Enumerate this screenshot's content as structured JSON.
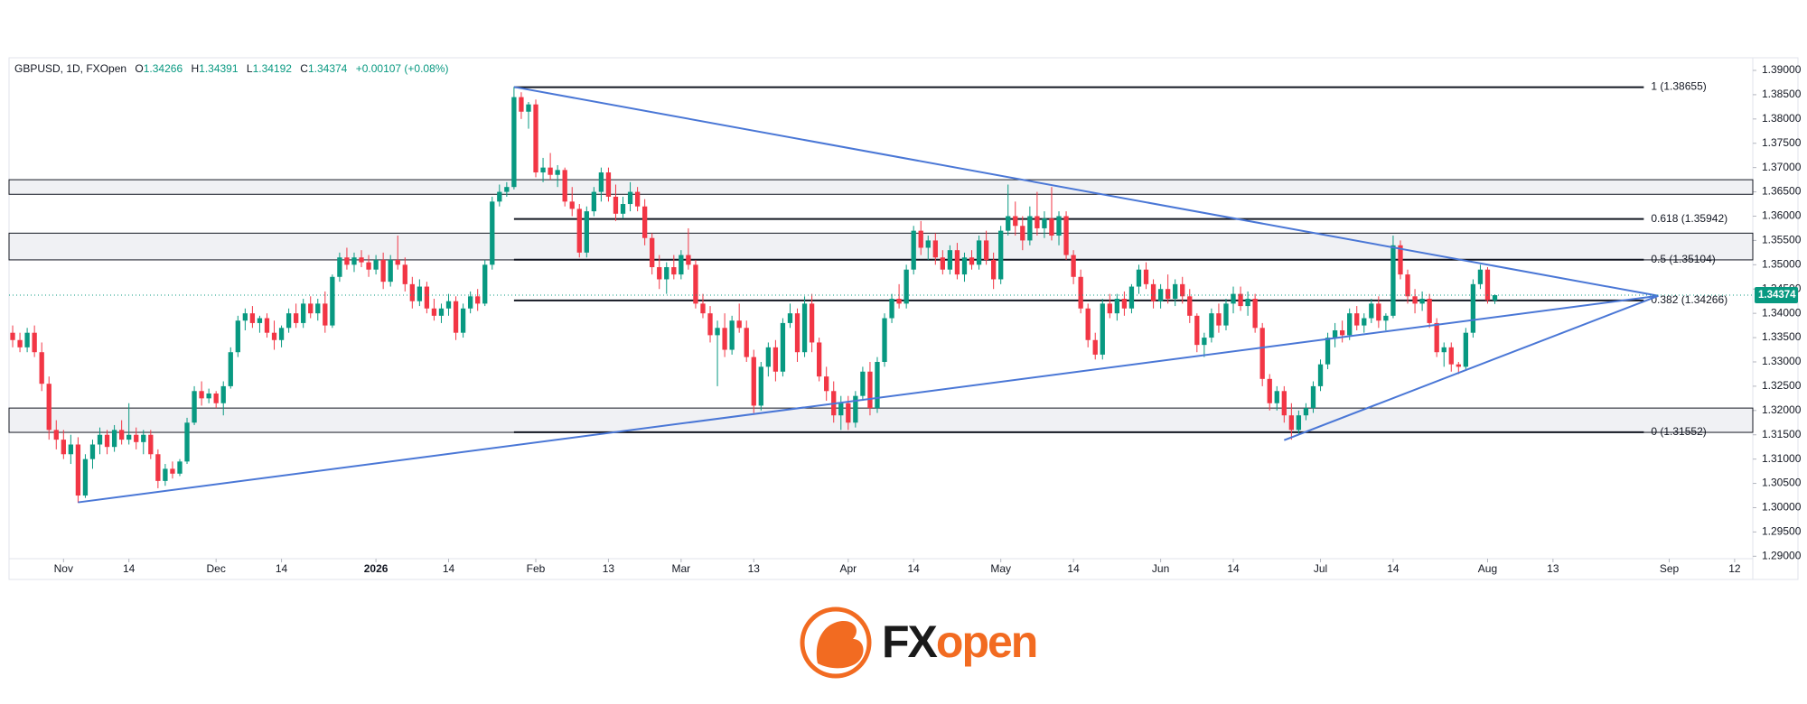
{
  "chart_data": {
    "type": "candlestick",
    "title": "GBPUSD, 1D, FXOpen",
    "change_label": "+0.00107 (+0.08%)",
    "ohlc_letters": [
      "O",
      "H",
      "L",
      "C"
    ],
    "up_color": "#089981",
    "down_color": "#f23645",
    "trend_color": "#4a77d6",
    "xlim": [
      -0.5,
      239.5
    ],
    "ylim": [
      1.2895,
      1.3926
    ],
    "xticks": [
      {
        "value": 7,
        "label": "Nov"
      },
      {
        "value": 16,
        "label": "14"
      },
      {
        "value": 28,
        "label": "Dec"
      },
      {
        "value": 37,
        "label": "14"
      },
      {
        "value": 50,
        "label": "2026"
      },
      {
        "value": 60,
        "label": "14"
      },
      {
        "value": 72,
        "label": "Feb"
      },
      {
        "value": 82,
        "label": "13"
      },
      {
        "value": 92,
        "label": "Mar"
      },
      {
        "value": 102,
        "label": "13"
      },
      {
        "value": 115,
        "label": "Apr"
      },
      {
        "value": 124,
        "label": "14"
      },
      {
        "value": 136,
        "label": "May"
      },
      {
        "value": 146,
        "label": "14"
      },
      {
        "value": 158,
        "label": "Jun"
      },
      {
        "value": 168,
        "label": "14"
      },
      {
        "value": 180,
        "label": "Jul"
      },
      {
        "value": 190,
        "label": "14"
      },
      {
        "value": 203,
        "label": "Aug"
      },
      {
        "value": 212,
        "label": "13"
      },
      {
        "value": 228,
        "label": "Sep"
      },
      {
        "value": 237,
        "label": "12"
      }
    ],
    "yticks": [
      {
        "value": 1.29,
        "label": "1.29000"
      },
      {
        "value": 1.295,
        "label": "1.29500"
      },
      {
        "value": 1.3,
        "label": "1.30000"
      },
      {
        "value": 1.305,
        "label": "1.30500"
      },
      {
        "value": 1.31,
        "label": "1.31000"
      },
      {
        "value": 1.315,
        "label": "1.31500"
      },
      {
        "value": 1.32,
        "label": "1.32000"
      },
      {
        "value": 1.325,
        "label": "1.32500"
      },
      {
        "value": 1.33,
        "label": "1.33000"
      },
      {
        "value": 1.335,
        "label": "1.33500"
      },
      {
        "value": 1.34,
        "label": "1.34000"
      },
      {
        "value": 1.345,
        "label": "1.34500"
      },
      {
        "value": 1.35,
        "label": "1.35000"
      },
      {
        "value": 1.355,
        "label": "1.35500"
      },
      {
        "value": 1.36,
        "label": "1.36000"
      },
      {
        "value": 1.365,
        "label": "1.36500"
      },
      {
        "value": 1.37,
        "label": "1.37000"
      },
      {
        "value": 1.375,
        "label": "1.37500"
      },
      {
        "value": 1.38,
        "label": "1.38000"
      },
      {
        "value": 1.385,
        "label": "1.38500"
      },
      {
        "value": 1.39,
        "label": "1.39000"
      }
    ],
    "zones": [
      [
        1.3645,
        1.3675
      ],
      [
        1.351,
        1.3565
      ],
      [
        1.3155,
        1.3205
      ]
    ],
    "fib_levels": [
      {
        "value": 1.38655,
        "label": "1 (1.38655)"
      },
      {
        "value": 1.35942,
        "label": "0.618 (1.35942)"
      },
      {
        "value": 1.35104,
        "label": "0.5 (1.35104)"
      },
      {
        "value": 1.34266,
        "label": "0.382 (1.34266)"
      },
      {
        "value": 1.31552,
        "label": "0 (1.31552)"
      }
    ],
    "trendlines": [
      [
        [
          9,
          1.3011
        ],
        [
          226.5,
          1.3436
        ]
      ],
      [
        [
          69,
          1.3866
        ],
        [
          226.5,
          1.3436
        ]
      ],
      [
        [
          175,
          1.3139
        ],
        [
          226.5,
          1.3436
        ]
      ]
    ],
    "candles": [
      [
        1.336,
        1.3375,
        1.333,
        1.3345
      ],
      [
        1.3345,
        1.336,
        1.332,
        1.333
      ],
      [
        1.333,
        1.337,
        1.332,
        1.336
      ],
      [
        1.336,
        1.3375,
        1.331,
        1.332
      ],
      [
        1.332,
        1.334,
        1.324,
        1.3255
      ],
      [
        1.3255,
        1.327,
        1.314,
        1.316
      ],
      [
        1.316,
        1.318,
        1.312,
        1.314
      ],
      [
        1.314,
        1.316,
        1.31,
        1.311
      ],
      [
        1.311,
        1.315,
        1.309,
        1.313
      ],
      [
        1.313,
        1.3145,
        1.301,
        1.3025
      ],
      [
        1.3025,
        1.311,
        1.302,
        1.31
      ],
      [
        1.31,
        1.314,
        1.308,
        1.313
      ],
      [
        1.313,
        1.3165,
        1.311,
        1.315
      ],
      [
        1.315,
        1.316,
        1.311,
        1.3125
      ],
      [
        1.3125,
        1.317,
        1.3115,
        1.316
      ],
      [
        1.316,
        1.318,
        1.313,
        1.314
      ],
      [
        1.314,
        1.3215,
        1.313,
        1.315
      ],
      [
        1.315,
        1.3165,
        1.312,
        1.3135
      ],
      [
        1.3135,
        1.316,
        1.311,
        1.315
      ],
      [
        1.315,
        1.316,
        1.31,
        1.311
      ],
      [
        1.311,
        1.312,
        1.304,
        1.3055
      ],
      [
        1.3055,
        1.309,
        1.3045,
        1.308
      ],
      [
        1.308,
        1.3095,
        1.306,
        1.307
      ],
      [
        1.307,
        1.31,
        1.3065,
        1.3095
      ],
      [
        1.3095,
        1.3185,
        1.309,
        1.3175
      ],
      [
        1.3175,
        1.325,
        1.317,
        1.324
      ],
      [
        1.324,
        1.326,
        1.321,
        1.3225
      ],
      [
        1.3225,
        1.3245,
        1.3215,
        1.3235
      ],
      [
        1.3235,
        1.324,
        1.3205,
        1.3215
      ],
      [
        1.3215,
        1.326,
        1.319,
        1.325
      ],
      [
        1.325,
        1.333,
        1.3245,
        1.332
      ],
      [
        1.332,
        1.3395,
        1.331,
        1.3385
      ],
      [
        1.3385,
        1.341,
        1.3365,
        1.34
      ],
      [
        1.34,
        1.3415,
        1.337,
        1.338
      ],
      [
        1.338,
        1.3395,
        1.336,
        1.339
      ],
      [
        1.339,
        1.34,
        1.335,
        1.336
      ],
      [
        1.336,
        1.3385,
        1.3325,
        1.3345
      ],
      [
        1.3345,
        1.3375,
        1.333,
        1.337
      ],
      [
        1.337,
        1.341,
        1.336,
        1.34
      ],
      [
        1.34,
        1.342,
        1.337,
        1.338
      ],
      [
        1.338,
        1.343,
        1.337,
        1.342
      ],
      [
        1.342,
        1.3435,
        1.339,
        1.34
      ],
      [
        1.34,
        1.343,
        1.3385,
        1.342
      ],
      [
        1.342,
        1.3445,
        1.336,
        1.3375
      ],
      [
        1.3375,
        1.348,
        1.337,
        1.3475
      ],
      [
        1.3475,
        1.3525,
        1.3465,
        1.3515
      ],
      [
        1.3515,
        1.3535,
        1.349,
        1.35
      ],
      [
        1.35,
        1.3525,
        1.3485,
        1.3515
      ],
      [
        1.3515,
        1.353,
        1.3495,
        1.3505
      ],
      [
        1.3505,
        1.352,
        1.3475,
        1.349
      ],
      [
        1.349,
        1.352,
        1.348,
        1.351
      ],
      [
        1.351,
        1.3525,
        1.345,
        1.3465
      ],
      [
        1.3465,
        1.352,
        1.3455,
        1.351
      ],
      [
        1.351,
        1.356,
        1.349,
        1.35
      ],
      [
        1.35,
        1.3515,
        1.3445,
        1.346
      ],
      [
        1.346,
        1.3475,
        1.341,
        1.3425
      ],
      [
        1.3425,
        1.347,
        1.3415,
        1.3455
      ],
      [
        1.3455,
        1.3465,
        1.34,
        1.341
      ],
      [
        1.341,
        1.343,
        1.3385,
        1.3395
      ],
      [
        1.3395,
        1.342,
        1.338,
        1.341
      ],
      [
        1.341,
        1.344,
        1.3395,
        1.3425
      ],
      [
        1.3425,
        1.3435,
        1.3345,
        1.336
      ],
      [
        1.336,
        1.342,
        1.335,
        1.341
      ],
      [
        1.341,
        1.3445,
        1.34,
        1.3435
      ],
      [
        1.3435,
        1.345,
        1.3405,
        1.342
      ],
      [
        1.342,
        1.351,
        1.3415,
        1.35
      ],
      [
        1.35,
        1.364,
        1.349,
        1.363
      ],
      [
        1.363,
        1.3665,
        1.362,
        1.365
      ],
      [
        1.365,
        1.367,
        1.364,
        1.366
      ],
      [
        1.366,
        1.3866,
        1.3655,
        1.3845
      ],
      [
        1.3845,
        1.3855,
        1.38,
        1.3815
      ],
      [
        1.3815,
        1.3835,
        1.378,
        1.383
      ],
      [
        1.383,
        1.384,
        1.368,
        1.369
      ],
      [
        1.369,
        1.372,
        1.367,
        1.37
      ],
      [
        1.37,
        1.373,
        1.3675,
        1.3685
      ],
      [
        1.3685,
        1.3705,
        1.366,
        1.3695
      ],
      [
        1.3695,
        1.37,
        1.362,
        1.363
      ],
      [
        1.363,
        1.366,
        1.36,
        1.3615
      ],
      [
        1.3615,
        1.3625,
        1.3515,
        1.3525
      ],
      [
        1.3525,
        1.362,
        1.3515,
        1.361
      ],
      [
        1.361,
        1.366,
        1.36,
        1.365
      ],
      [
        1.365,
        1.37,
        1.363,
        1.369
      ],
      [
        1.369,
        1.37,
        1.363,
        1.364
      ],
      [
        1.364,
        1.3665,
        1.359,
        1.3605
      ],
      [
        1.3605,
        1.364,
        1.3595,
        1.3625
      ],
      [
        1.3625,
        1.367,
        1.361,
        1.365
      ],
      [
        1.365,
        1.366,
        1.361,
        1.362
      ],
      [
        1.362,
        1.3635,
        1.354,
        1.3555
      ],
      [
        1.3555,
        1.3565,
        1.348,
        1.3495
      ],
      [
        1.3495,
        1.352,
        1.345,
        1.347
      ],
      [
        1.347,
        1.3505,
        1.344,
        1.3495
      ],
      [
        1.3495,
        1.352,
        1.347,
        1.348
      ],
      [
        1.348,
        1.353,
        1.347,
        1.352
      ],
      [
        1.352,
        1.3575,
        1.349,
        1.35
      ],
      [
        1.35,
        1.351,
        1.341,
        1.342
      ],
      [
        1.342,
        1.344,
        1.339,
        1.34
      ],
      [
        1.34,
        1.3415,
        1.334,
        1.3355
      ],
      [
        1.3355,
        1.3385,
        1.325,
        1.337
      ],
      [
        1.337,
        1.34,
        1.331,
        1.3325
      ],
      [
        1.3325,
        1.3395,
        1.3315,
        1.3385
      ],
      [
        1.3385,
        1.342,
        1.336,
        1.337
      ],
      [
        1.337,
        1.3385,
        1.33,
        1.331
      ],
      [
        1.331,
        1.3325,
        1.3195,
        1.321
      ],
      [
        1.321,
        1.33,
        1.32,
        1.329
      ],
      [
        1.329,
        1.334,
        1.327,
        1.333
      ],
      [
        1.333,
        1.3345,
        1.326,
        1.328
      ],
      [
        1.328,
        1.339,
        1.327,
        1.338
      ],
      [
        1.338,
        1.342,
        1.337,
        1.34
      ],
      [
        1.34,
        1.341,
        1.33,
        1.332
      ],
      [
        1.332,
        1.3435,
        1.331,
        1.342
      ],
      [
        1.342,
        1.344,
        1.332,
        1.334
      ],
      [
        1.334,
        1.335,
        1.326,
        1.327
      ],
      [
        1.327,
        1.329,
        1.322,
        1.324
      ],
      [
        1.324,
        1.326,
        1.3175,
        1.319
      ],
      [
        1.319,
        1.323,
        1.316,
        1.3215
      ],
      [
        1.3215,
        1.323,
        1.316,
        1.3175
      ],
      [
        1.3175,
        1.324,
        1.3165,
        1.323
      ],
      [
        1.323,
        1.329,
        1.322,
        1.328
      ],
      [
        1.328,
        1.33,
        1.319,
        1.3205
      ],
      [
        1.3205,
        1.331,
        1.3195,
        1.33
      ],
      [
        1.33,
        1.34,
        1.329,
        1.339
      ],
      [
        1.339,
        1.344,
        1.338,
        1.343
      ],
      [
        1.343,
        1.346,
        1.341,
        1.342
      ],
      [
        1.342,
        1.35,
        1.341,
        1.349
      ],
      [
        1.349,
        1.358,
        1.348,
        1.357
      ],
      [
        1.357,
        1.359,
        1.352,
        1.3535
      ],
      [
        1.3535,
        1.356,
        1.351,
        1.355
      ],
      [
        1.355,
        1.3565,
        1.35,
        1.3515
      ],
      [
        1.3515,
        1.353,
        1.348,
        1.349
      ],
      [
        1.349,
        1.354,
        1.348,
        1.353
      ],
      [
        1.353,
        1.3545,
        1.347,
        1.348
      ],
      [
        1.348,
        1.3525,
        1.3465,
        1.3515
      ],
      [
        1.3515,
        1.353,
        1.349,
        1.35
      ],
      [
        1.35,
        1.356,
        1.349,
        1.355
      ],
      [
        1.355,
        1.357,
        1.35,
        1.351
      ],
      [
        1.351,
        1.3525,
        1.345,
        1.347
      ],
      [
        1.347,
        1.358,
        1.346,
        1.357
      ],
      [
        1.357,
        1.3665,
        1.356,
        1.36
      ],
      [
        1.36,
        1.363,
        1.356,
        1.358
      ],
      [
        1.358,
        1.36,
        1.353,
        1.355
      ],
      [
        1.355,
        1.362,
        1.354,
        1.36
      ],
      [
        1.36,
        1.365,
        1.356,
        1.3575
      ],
      [
        1.3575,
        1.361,
        1.3555,
        1.3595
      ],
      [
        1.3595,
        1.366,
        1.355,
        1.356
      ],
      [
        1.356,
        1.361,
        1.354,
        1.36
      ],
      [
        1.36,
        1.361,
        1.351,
        1.352
      ],
      [
        1.352,
        1.353,
        1.346,
        1.3475
      ],
      [
        1.3475,
        1.349,
        1.34,
        1.341
      ],
      [
        1.341,
        1.342,
        1.333,
        1.3345
      ],
      [
        1.3345,
        1.336,
        1.3305,
        1.3315
      ],
      [
        1.3315,
        1.343,
        1.3305,
        1.342
      ],
      [
        1.342,
        1.344,
        1.339,
        1.34
      ],
      [
        1.34,
        1.344,
        1.3385,
        1.343
      ],
      [
        1.343,
        1.3445,
        1.3395,
        1.341
      ],
      [
        1.341,
        1.346,
        1.34,
        1.3455
      ],
      [
        1.3455,
        1.35,
        1.344,
        1.349
      ],
      [
        1.349,
        1.3505,
        1.345,
        1.346
      ],
      [
        1.346,
        1.347,
        1.341,
        1.3425
      ],
      [
        1.3425,
        1.346,
        1.341,
        1.345
      ],
      [
        1.345,
        1.348,
        1.342,
        1.343
      ],
      [
        1.343,
        1.347,
        1.3415,
        1.346
      ],
      [
        1.346,
        1.3475,
        1.342,
        1.3435
      ],
      [
        1.3435,
        1.345,
        1.338,
        1.3395
      ],
      [
        1.3395,
        1.34,
        1.332,
        1.3335
      ],
      [
        1.3335,
        1.336,
        1.331,
        1.335
      ],
      [
        1.335,
        1.341,
        1.334,
        1.34
      ],
      [
        1.34,
        1.342,
        1.336,
        1.3375
      ],
      [
        1.3375,
        1.343,
        1.3365,
        1.342
      ],
      [
        1.342,
        1.3455,
        1.34,
        1.344
      ],
      [
        1.344,
        1.3455,
        1.3405,
        1.3415
      ],
      [
        1.3415,
        1.3445,
        1.3395,
        1.343
      ],
      [
        1.343,
        1.344,
        1.336,
        1.337
      ],
      [
        1.337,
        1.338,
        1.325,
        1.3265
      ],
      [
        1.3265,
        1.3275,
        1.32,
        1.3215
      ],
      [
        1.3215,
        1.325,
        1.32,
        1.324
      ],
      [
        1.324,
        1.325,
        1.3175,
        1.319
      ],
      [
        1.319,
        1.3215,
        1.314,
        1.316
      ],
      [
        1.316,
        1.32,
        1.315,
        1.319
      ],
      [
        1.319,
        1.3215,
        1.318,
        1.3205
      ],
      [
        1.3205,
        1.326,
        1.3195,
        1.325
      ],
      [
        1.325,
        1.3305,
        1.324,
        1.3295
      ],
      [
        1.3295,
        1.336,
        1.3285,
        1.335
      ],
      [
        1.335,
        1.338,
        1.333,
        1.3365
      ],
      [
        1.3365,
        1.3385,
        1.334,
        1.3355
      ],
      [
        1.3355,
        1.341,
        1.3345,
        1.34
      ],
      [
        1.34,
        1.3415,
        1.3365,
        1.3375
      ],
      [
        1.3375,
        1.34,
        1.336,
        1.339
      ],
      [
        1.339,
        1.343,
        1.338,
        1.342
      ],
      [
        1.342,
        1.3435,
        1.337,
        1.3385
      ],
      [
        1.3385,
        1.34,
        1.3365,
        1.3395
      ],
      [
        1.3395,
        1.356,
        1.339,
        1.354
      ],
      [
        1.354,
        1.355,
        1.347,
        1.348
      ],
      [
        1.348,
        1.349,
        1.342,
        1.3435
      ],
      [
        1.3435,
        1.345,
        1.34,
        1.342
      ],
      [
        1.342,
        1.3445,
        1.3405,
        1.343
      ],
      [
        1.343,
        1.344,
        1.337,
        1.338
      ],
      [
        1.338,
        1.339,
        1.331,
        1.332
      ],
      [
        1.332,
        1.334,
        1.329,
        1.333
      ],
      [
        1.333,
        1.334,
        1.328,
        1.3295
      ],
      [
        1.3295,
        1.33,
        1.3275,
        1.329
      ],
      [
        1.329,
        1.337,
        1.3285,
        1.336
      ],
      [
        1.336,
        1.347,
        1.335,
        1.346
      ],
      [
        1.346,
        1.35,
        1.345,
        1.349
      ],
      [
        1.349,
        1.3495,
        1.342,
        1.3427
      ],
      [
        1.34266,
        1.34391,
        1.34192,
        1.34374
      ]
    ]
  },
  "logo": {
    "fx": "FX",
    "open": "open"
  }
}
